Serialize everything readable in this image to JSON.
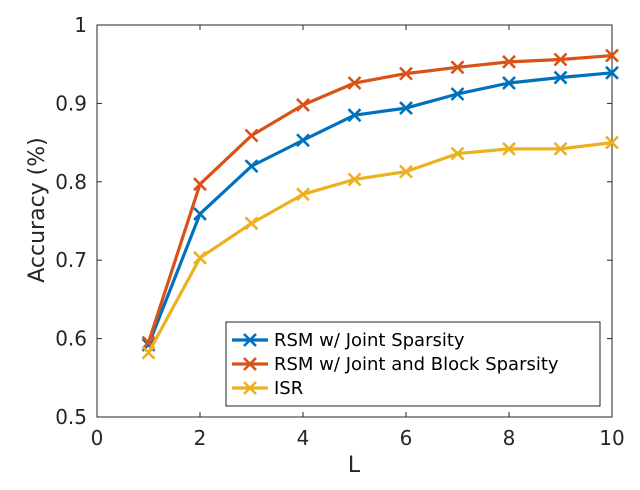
{
  "chart_data": {
    "type": "line",
    "title": "",
    "xlabel": "L",
    "ylabel": "Accuracy (%)",
    "xlim": [
      0,
      10
    ],
    "ylim": [
      0.5,
      1
    ],
    "xticks": [
      0,
      2,
      4,
      6,
      8,
      10
    ],
    "yticks": [
      0.5,
      0.6,
      0.7,
      0.8,
      0.9,
      1
    ],
    "xtick_labels": [
      "0",
      "2",
      "4",
      "6",
      "8",
      "10"
    ],
    "ytick_labels": [
      "0.5",
      "0.6",
      "0.7",
      "0.8",
      "0.9",
      "1"
    ],
    "grid": false,
    "legend_position": "bottom-right",
    "marker": "x",
    "x": [
      1,
      2,
      3,
      4,
      5,
      6,
      7,
      8,
      9,
      10
    ],
    "series": [
      {
        "name": "RSM w/ Joint Sparsity",
        "color": "#0072BD",
        "values": [
          0.592,
          0.759,
          0.82,
          0.853,
          0.885,
          0.894,
          0.912,
          0.926,
          0.933,
          0.939
        ]
      },
      {
        "name": "RSM w/ Joint and Block Sparsity",
        "color": "#D95319",
        "values": [
          0.595,
          0.797,
          0.859,
          0.898,
          0.926,
          0.938,
          0.946,
          0.953,
          0.956,
          0.961
        ]
      },
      {
        "name": "ISR",
        "color": "#EDB120",
        "values": [
          0.582,
          0.703,
          0.747,
          0.784,
          0.803,
          0.813,
          0.836,
          0.842,
          0.842,
          0.85
        ]
      }
    ]
  }
}
